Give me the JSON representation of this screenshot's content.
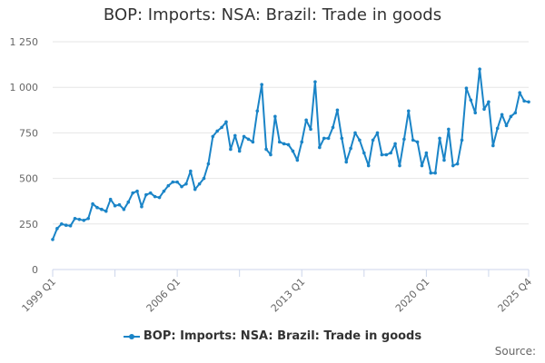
{
  "chart_data": {
    "type": "line",
    "title": "BOP: Imports: NSA: Brazil: Trade in goods",
    "xlabel": "",
    "ylabel": "",
    "ylim": [
      0,
      1250
    ],
    "y_ticks": [
      "0",
      "250",
      "500",
      "750",
      "1 000",
      "1 250"
    ],
    "x_tick_labels": [
      "1999 Q1",
      "2006 Q1",
      "2013 Q1",
      "2020 Q1",
      "2025 Q4"
    ],
    "grid": true,
    "legend_position": "bottom",
    "series": [
      {
        "name": "BOP: Imports: NSA: Brazil: Trade in goods",
        "color": "#1a84c7",
        "start": "1999 Q1",
        "values": [
          165,
          225,
          250,
          243,
          240,
          280,
          275,
          270,
          280,
          360,
          340,
          330,
          320,
          385,
          350,
          355,
          330,
          370,
          420,
          430,
          345,
          410,
          420,
          400,
          395,
          430,
          460,
          480,
          480,
          455,
          470,
          540,
          440,
          470,
          500,
          580,
          730,
          760,
          780,
          810,
          660,
          735,
          650,
          730,
          715,
          700,
          870,
          1015,
          660,
          630,
          840,
          700,
          690,
          685,
          650,
          600,
          700,
          820,
          770,
          1030,
          670,
          720,
          720,
          780,
          875,
          720,
          590,
          665,
          750,
          710,
          640,
          570,
          710,
          750,
          630,
          630,
          640,
          690,
          570,
          715,
          870,
          710,
          700,
          570,
          640,
          530,
          530,
          720,
          600,
          770,
          570,
          580,
          710,
          995,
          930,
          860,
          1100,
          880,
          920,
          680,
          775,
          850,
          790,
          840,
          860,
          970,
          925,
          920
        ]
      }
    ]
  },
  "footer": {
    "credits": "Source:"
  }
}
